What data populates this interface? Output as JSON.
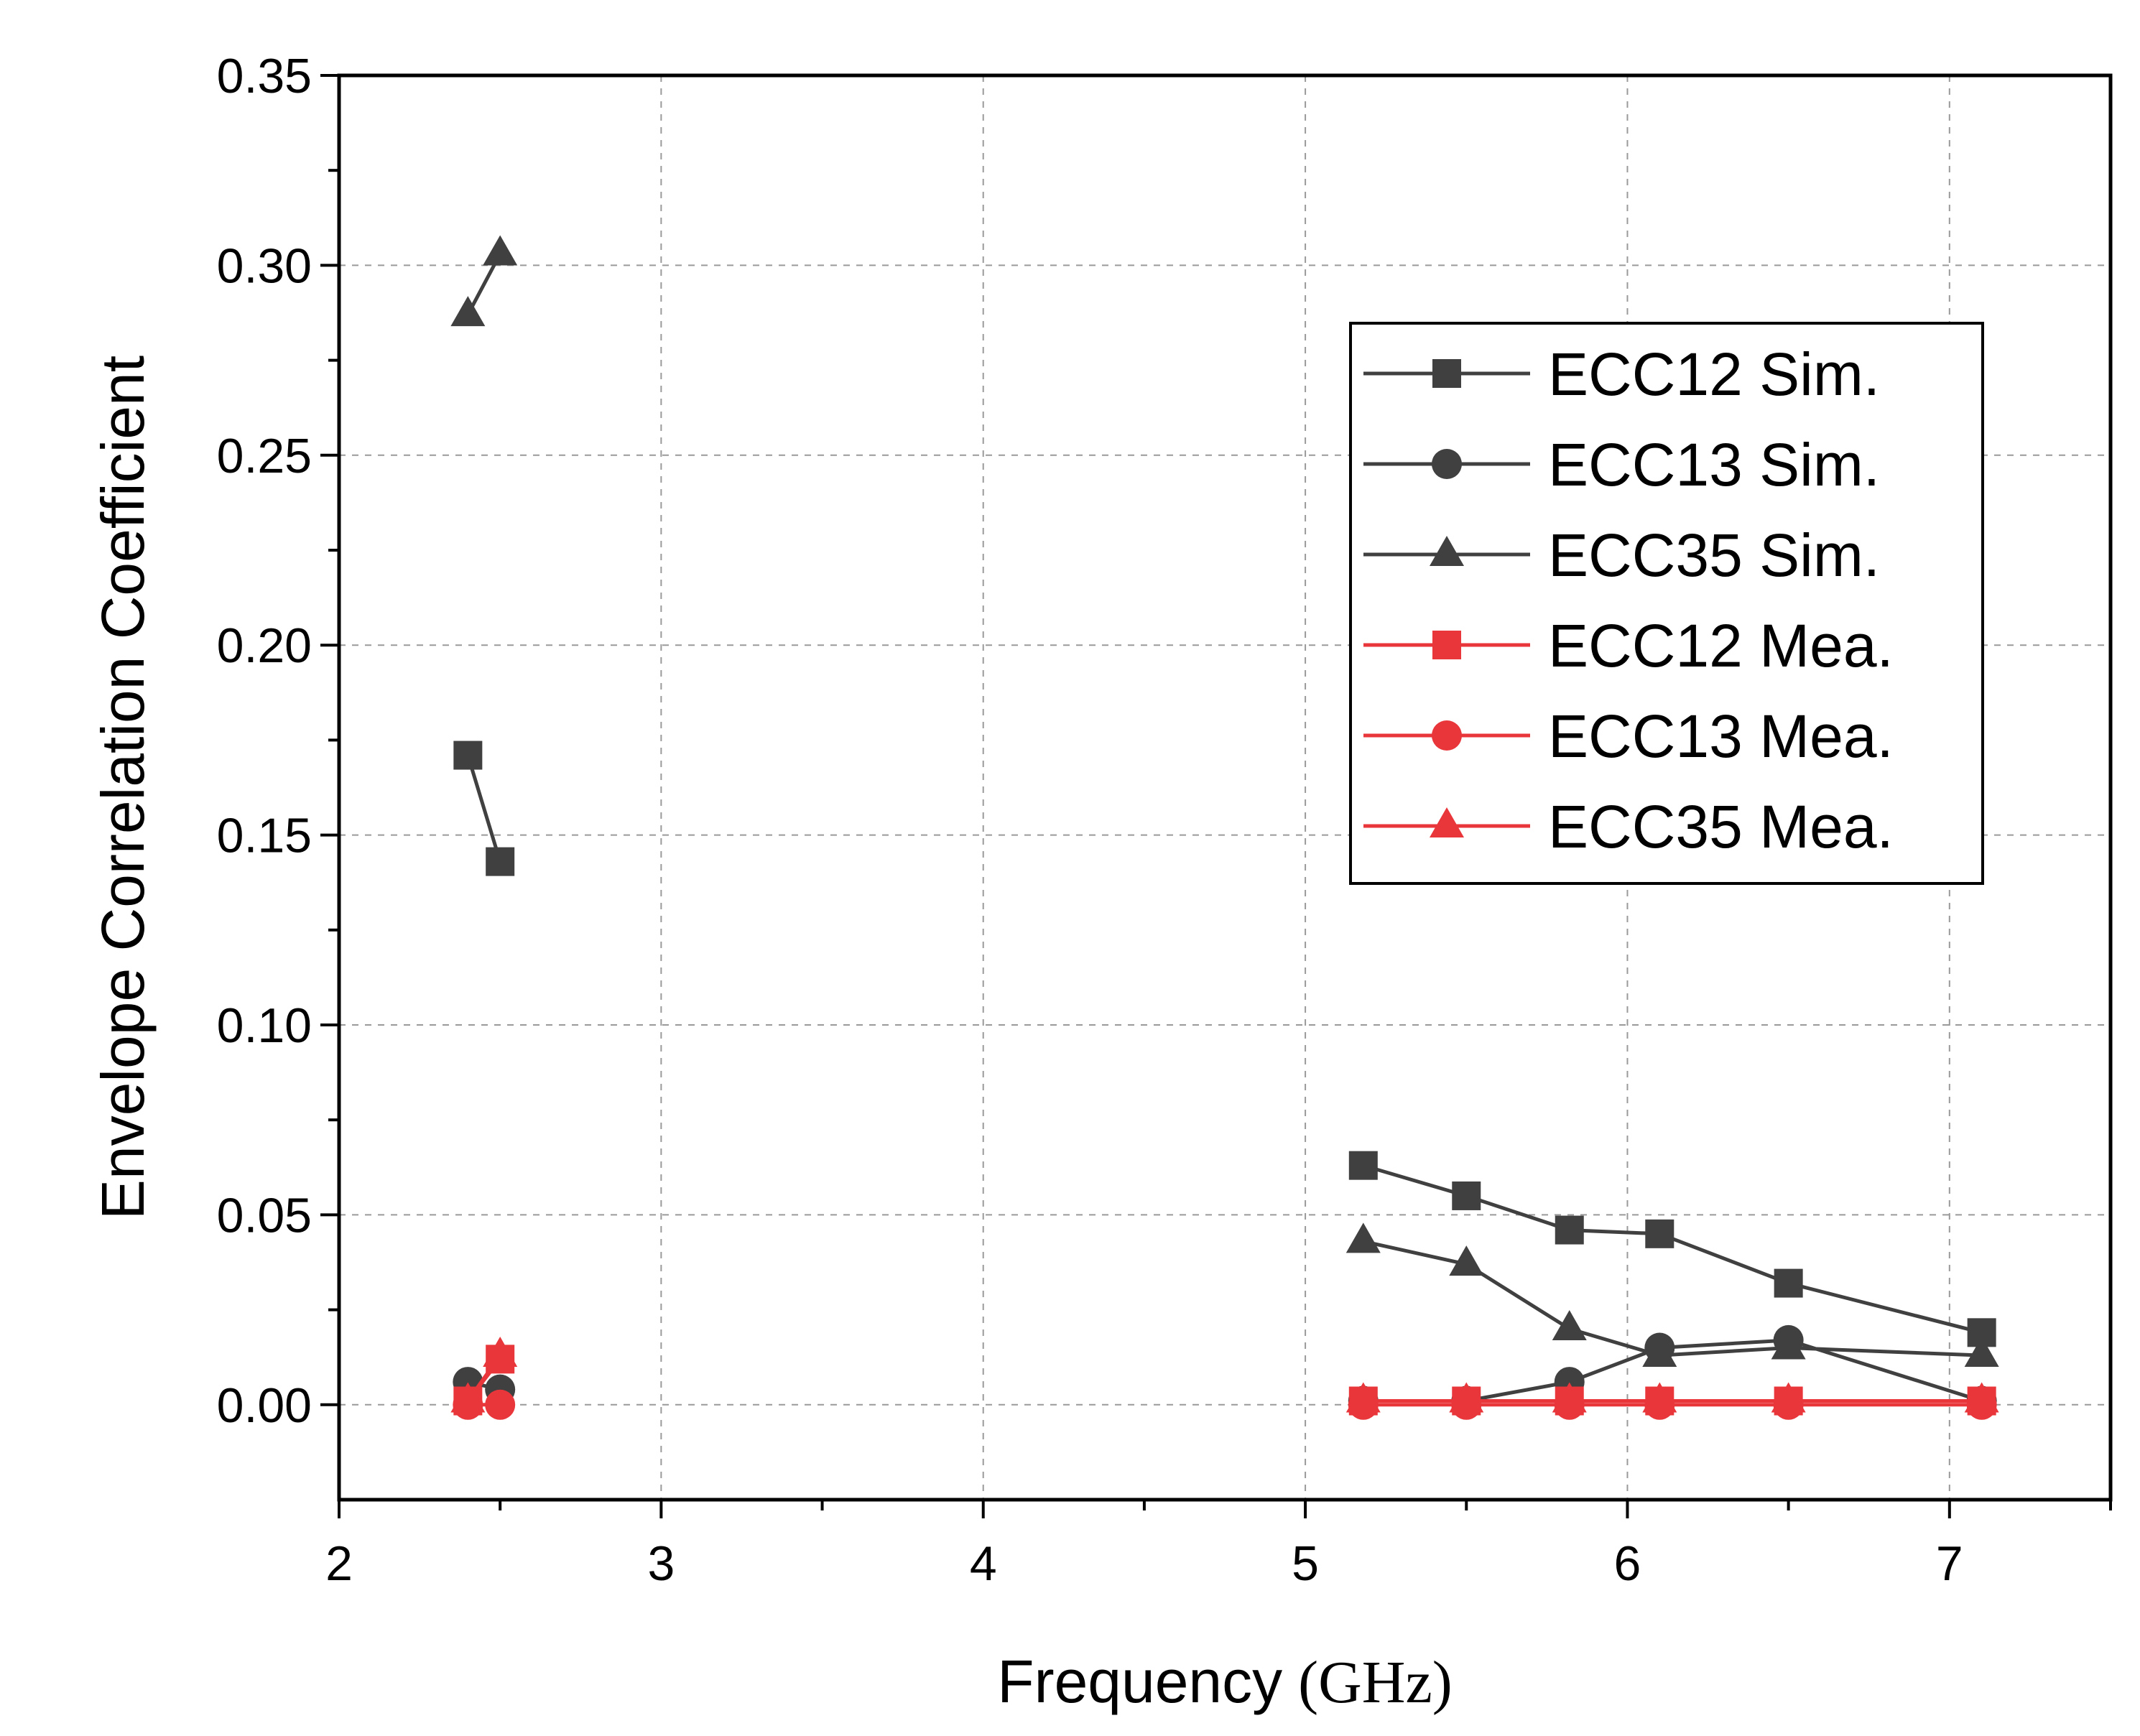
{
  "chart_data": {
    "type": "line",
    "title": "",
    "xlabel": "Frequency",
    "xlabel_unit": "(GHz)",
    "ylabel": "Envelope Correlation Coefficient",
    "xlim": [
      2,
      7.5
    ],
    "ylim": [
      -0.025,
      0.35
    ],
    "x_ticks": [
      "2",
      "3",
      "4",
      "5",
      "6",
      "7"
    ],
    "y_ticks": [
      "0.00",
      "0.05",
      "0.10",
      "0.15",
      "0.20",
      "0.25",
      "0.30",
      "0.35"
    ],
    "grid": true,
    "legend_position": "top-right",
    "series": [
      {
        "name": "ECC12 Sim.",
        "color": "#404040",
        "marker": "square",
        "segments": [
          [
            [
              2.4,
              0.171
            ],
            [
              2.5,
              0.143
            ]
          ],
          [
            [
              5.18,
              0.063
            ],
            [
              5.5,
              0.055
            ],
            [
              5.82,
              0.046
            ],
            [
              6.1,
              0.045
            ],
            [
              6.5,
              0.032
            ],
            [
              7.1,
              0.019
            ]
          ]
        ]
      },
      {
        "name": "ECC13 Sim.",
        "color": "#404040",
        "marker": "circle",
        "segments": [
          [
            [
              2.4,
              0.006
            ],
            [
              2.5,
              0.004
            ]
          ],
          [
            [
              5.18,
              0.001
            ],
            [
              5.5,
              0.001
            ],
            [
              5.82,
              0.006
            ],
            [
              6.1,
              0.015
            ],
            [
              6.5,
              0.017
            ],
            [
              7.1,
              0.001
            ]
          ]
        ]
      },
      {
        "name": "ECC35 Sim.",
        "color": "#404040",
        "marker": "triangle",
        "segments": [
          [
            [
              2.4,
              0.287
            ],
            [
              2.5,
              0.303
            ]
          ],
          [
            [
              5.18,
              0.043
            ],
            [
              5.5,
              0.037
            ],
            [
              5.82,
              0.02
            ],
            [
              6.1,
              0.013
            ],
            [
              6.5,
              0.015
            ],
            [
              7.1,
              0.013
            ]
          ]
        ]
      },
      {
        "name": "ECC12 Mea.",
        "color": "#e8363b",
        "marker": "square",
        "segments": [
          [
            [
              2.4,
              0.001
            ],
            [
              2.5,
              0.012
            ]
          ],
          [
            [
              5.18,
              0.001
            ],
            [
              5.5,
              0.001
            ],
            [
              5.82,
              0.001
            ],
            [
              6.1,
              0.001
            ],
            [
              6.5,
              0.001
            ],
            [
              7.1,
              0.001
            ]
          ]
        ]
      },
      {
        "name": "ECC13 Mea.",
        "color": "#e8363b",
        "marker": "circle",
        "segments": [
          [
            [
              2.4,
              0.0
            ],
            [
              2.5,
              0.0
            ]
          ],
          [
            [
              5.18,
              0.0
            ],
            [
              5.5,
              0.0
            ],
            [
              5.82,
              0.0
            ],
            [
              6.1,
              0.0
            ],
            [
              6.5,
              0.0
            ],
            [
              7.1,
              0.0
            ]
          ]
        ]
      },
      {
        "name": "ECC35 Mea.",
        "color": "#e8363b",
        "marker": "triangle",
        "segments": [
          [
            [
              2.4,
              0.001
            ],
            [
              2.5,
              0.013
            ]
          ],
          [
            [
              5.18,
              0.001
            ],
            [
              5.5,
              0.001
            ],
            [
              5.82,
              0.001
            ],
            [
              6.1,
              0.001
            ],
            [
              6.5,
              0.001
            ],
            [
              7.1,
              0.001
            ]
          ]
        ]
      }
    ]
  }
}
